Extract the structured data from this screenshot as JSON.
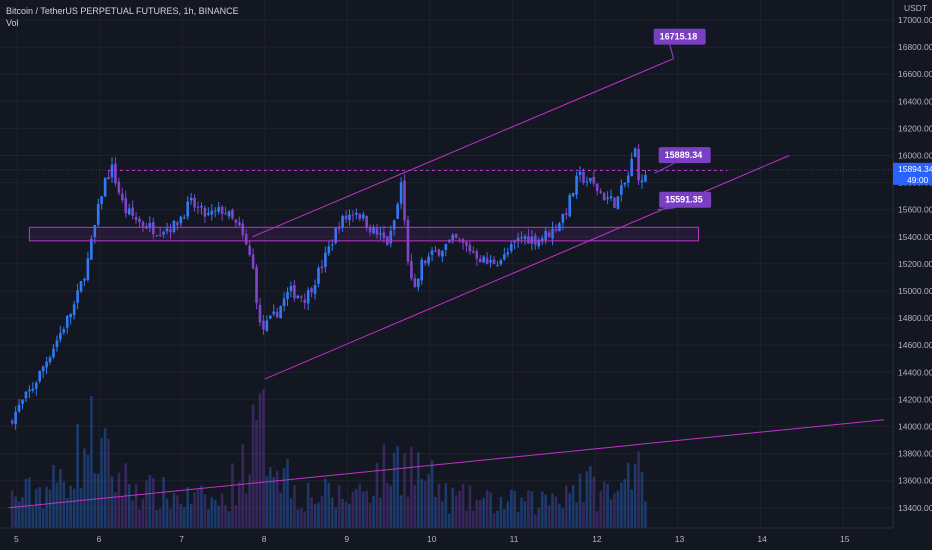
{
  "header": {
    "symbol_line": "Bitcoin / TetherUS PERPETUAL FUTURES, 1h, BINANCE",
    "volume_label": "Vol"
  },
  "axis": {
    "currency": "USDT",
    "y_ticks": [
      "17000.00",
      "16800.00",
      "16600.00",
      "16400.00",
      "16200.00",
      "16000.00",
      "15800.00",
      "15600.00",
      "15400.00",
      "15200.00",
      "15000.00",
      "14800.00",
      "14600.00",
      "14400.00",
      "14200.00",
      "14000.00",
      "13800.00",
      "13600.00",
      "13400.00"
    ],
    "x_ticks": [
      "5",
      "6",
      "7",
      "8",
      "9",
      "10",
      "11",
      "12",
      "13",
      "14",
      "15"
    ]
  },
  "last_price": {
    "value": "15894.34",
    "countdown": "49:00",
    "color": "#2962ff"
  },
  "annotations": [
    {
      "label": "16715.18"
    },
    {
      "label": "15889.34"
    },
    {
      "label": "15591.35"
    }
  ],
  "colors": {
    "background": "#131722",
    "up_candle": "#2f7bf5",
    "down_candle": "#7e45c9",
    "drawing": "#c033c8",
    "callout": "#7b3fc4"
  },
  "chart_data": {
    "type": "candlestick",
    "interval": "1h",
    "ylim": [
      13300,
      17080
    ],
    "price_series_close": [
      {
        "x": 4.9,
        "y": 14030
      },
      {
        "x": 5.2,
        "y": 14300
      },
      {
        "x": 5.45,
        "y": 14600
      },
      {
        "x": 5.7,
        "y": 14900
      },
      {
        "x": 5.85,
        "y": 15200
      },
      {
        "x": 5.95,
        "y": 15500
      },
      {
        "x": 6.05,
        "y": 15800
      },
      {
        "x": 6.15,
        "y": 15900
      },
      {
        "x": 6.3,
        "y": 15600
      },
      {
        "x": 6.5,
        "y": 15500
      },
      {
        "x": 6.7,
        "y": 15450
      },
      {
        "x": 6.9,
        "y": 15480
      },
      {
        "x": 7.1,
        "y": 15650
      },
      {
        "x": 7.3,
        "y": 15550
      },
      {
        "x": 7.5,
        "y": 15600
      },
      {
        "x": 7.7,
        "y": 15450
      },
      {
        "x": 7.85,
        "y": 15200
      },
      {
        "x": 7.95,
        "y": 14700
      },
      {
        "x": 8.1,
        "y": 14800
      },
      {
        "x": 8.3,
        "y": 15000
      },
      {
        "x": 8.5,
        "y": 14950
      },
      {
        "x": 8.7,
        "y": 15200
      },
      {
        "x": 8.9,
        "y": 15500
      },
      {
        "x": 9.1,
        "y": 15600
      },
      {
        "x": 9.3,
        "y": 15450
      },
      {
        "x": 9.5,
        "y": 15350
      },
      {
        "x": 9.6,
        "y": 15600
      },
      {
        "x": 9.65,
        "y": 15800
      },
      {
        "x": 9.72,
        "y": 15300
      },
      {
        "x": 9.8,
        "y": 14950
      },
      {
        "x": 9.9,
        "y": 15200
      },
      {
        "x": 10.1,
        "y": 15300
      },
      {
        "x": 10.3,
        "y": 15380
      },
      {
        "x": 10.5,
        "y": 15300
      },
      {
        "x": 10.7,
        "y": 15200
      },
      {
        "x": 10.9,
        "y": 15250
      },
      {
        "x": 11.1,
        "y": 15400
      },
      {
        "x": 11.3,
        "y": 15380
      },
      {
        "x": 11.5,
        "y": 15450
      },
      {
        "x": 11.65,
        "y": 15600
      },
      {
        "x": 11.8,
        "y": 15850
      },
      {
        "x": 11.95,
        "y": 15800
      },
      {
        "x": 12.1,
        "y": 15700
      },
      {
        "x": 12.25,
        "y": 15650
      },
      {
        "x": 12.4,
        "y": 15850
      },
      {
        "x": 12.48,
        "y": 16050
      },
      {
        "x": 12.55,
        "y": 15750
      },
      {
        "x": 12.62,
        "y": 15894.34
      }
    ],
    "volume_profile": [
      {
        "x": 5.0,
        "v": 0.3
      },
      {
        "x": 5.5,
        "v": 0.45
      },
      {
        "x": 5.9,
        "v": 0.9
      },
      {
        "x": 6.2,
        "v": 0.5
      },
      {
        "x": 6.6,
        "v": 0.35
      },
      {
        "x": 7.0,
        "v": 0.3
      },
      {
        "x": 7.5,
        "v": 0.25
      },
      {
        "x": 7.95,
        "v": 1.0
      },
      {
        "x": 8.4,
        "v": 0.35
      },
      {
        "x": 9.0,
        "v": 0.3
      },
      {
        "x": 9.7,
        "v": 0.7
      },
      {
        "x": 10.2,
        "v": 0.3
      },
      {
        "x": 10.8,
        "v": 0.25
      },
      {
        "x": 11.3,
        "v": 0.25
      },
      {
        "x": 11.8,
        "v": 0.45
      },
      {
        "x": 12.3,
        "v": 0.3
      },
      {
        "x": 12.5,
        "v": 1.0
      },
      {
        "x": 12.65,
        "v": 0.1
      }
    ],
    "drawings": {
      "upper_channel": {
        "from": {
          "x": 7.85,
          "y": 15400
        },
        "to": {
          "x": 12.95,
          "y": 16715.18
        }
      },
      "lower_channel": {
        "from": {
          "x": 8.0,
          "y": 14350
        },
        "to": {
          "x": 14.35,
          "y": 16000
        }
      },
      "resistance_dashed": {
        "from": {
          "x": 6.1,
          "y": 15889.34
        },
        "to": {
          "x": 13.6,
          "y": 15889.34
        }
      },
      "support_zone": {
        "x_from": 5.15,
        "x_to": 13.25,
        "y_from": 15370,
        "y_to": 15470
      },
      "volume_trendline": {
        "from": {
          "x": 4.9,
          "y": 13400
        },
        "to": {
          "x": 15.5,
          "y": 14050
        }
      }
    }
  }
}
